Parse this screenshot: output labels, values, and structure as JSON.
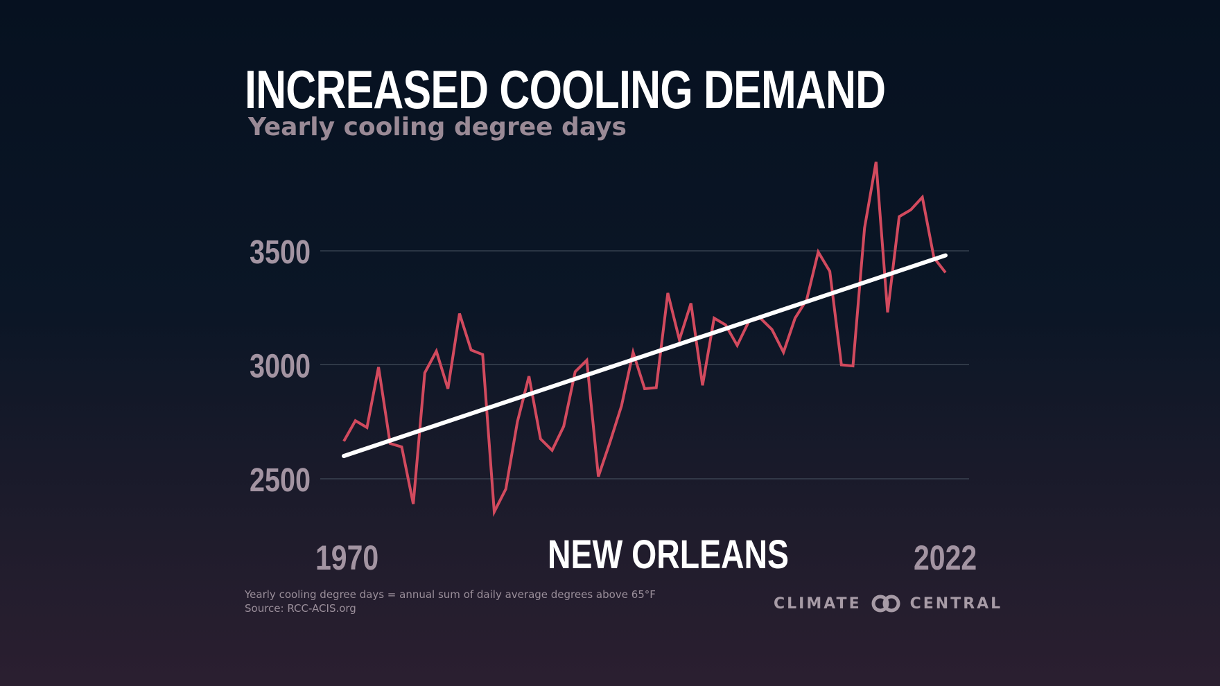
{
  "header": {
    "title": "INCREASED COOLING DEMAND",
    "subtitle": "Yearly cooling degree days"
  },
  "location": "NEW ORLEANS",
  "footer": {
    "definition": "Yearly cooling degree days = annual sum of daily average degrees above 65°F",
    "source": "Source: RCC-ACIS.org"
  },
  "brand": {
    "left": "CLIMATE",
    "right": "CENTRAL",
    "logo_icon": "interlocking-rings-icon"
  },
  "colors": {
    "series": "#d24a5e",
    "trend": "#ffffff",
    "grid": "#4a5563",
    "tick": "#a394a2"
  },
  "chart_data": {
    "type": "line",
    "title": "INCREASED COOLING DEMAND",
    "subtitle": "Yearly cooling degree days",
    "xlabel": "",
    "ylabel": "",
    "xlim": [
      1970,
      2022
    ],
    "ylim": [
      2350,
      3900
    ],
    "x_tick_labels": [
      "1970",
      "2022"
    ],
    "y_ticks": [
      2500,
      3000,
      3500
    ],
    "y_tick_labels": [
      "2500",
      "3000",
      "3500"
    ],
    "grid": true,
    "x": [
      1970,
      1971,
      1972,
      1973,
      1974,
      1975,
      1976,
      1977,
      1978,
      1979,
      1980,
      1981,
      1982,
      1983,
      1984,
      1985,
      1986,
      1987,
      1988,
      1989,
      1990,
      1991,
      1992,
      1993,
      1994,
      1995,
      1996,
      1997,
      1998,
      1999,
      2000,
      2001,
      2002,
      2003,
      2004,
      2005,
      2006,
      2007,
      2008,
      2009,
      2010,
      2011,
      2012,
      2013,
      2014,
      2015,
      2016,
      2017,
      2018,
      2019,
      2020,
      2021,
      2022
    ],
    "series": [
      {
        "name": "Yearly cooling degree days",
        "values": [
          2665,
          2755,
          2725,
          2990,
          2655,
          2640,
          2390,
          2965,
          3060,
          2895,
          3225,
          3065,
          3045,
          2355,
          2455,
          2750,
          2950,
          2675,
          2625,
          2730,
          2970,
          3020,
          2510,
          2660,
          2820,
          3055,
          2895,
          2900,
          3315,
          3110,
          3270,
          2910,
          3205,
          3175,
          3085,
          3190,
          3205,
          3155,
          3055,
          3205,
          3285,
          3495,
          3410,
          3000,
          2995,
          3600,
          3890,
          3230,
          3650,
          3680,
          3735,
          3470,
          3405
        ]
      },
      {
        "name": "Trend",
        "values": [
          2600,
          3480
        ],
        "x": [
          1970,
          2022
        ]
      }
    ]
  }
}
